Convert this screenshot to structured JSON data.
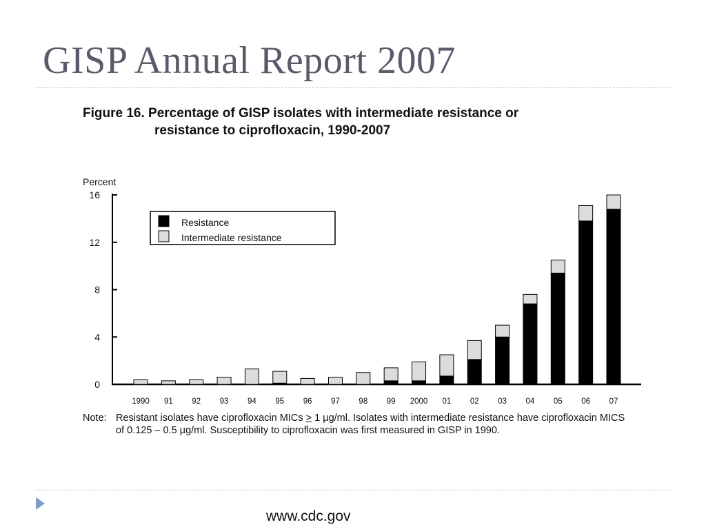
{
  "slide": {
    "title": "GISP Annual Report 2007",
    "footer_url": "www.cdc.gov",
    "bullet_icon": "triangle-bullet-icon"
  },
  "figure": {
    "caption_line1": "Figure 16. Percentage of GISP isolates with intermediate resistance or",
    "caption_line2": "resistance to ciprofloxacin, 1990-2007"
  },
  "note": {
    "label": "Note:",
    "text_part1": "Resistant isolates have ciprofloxacin MICs ",
    "ge_symbol": ">",
    "text_part2": " 1 µg/ml. Isolates with intermediate resistance have ciprofloxacin MICS of 0.125 – 0.5 µg/ml. Susceptibility to ciprofloxacin was first measured in GISP in 1990."
  },
  "chart_data": {
    "type": "bar",
    "stacked": true,
    "ylabel": "Percent",
    "xlabel": "",
    "ylim": [
      0,
      16
    ],
    "yticks": [
      0,
      4,
      8,
      12,
      16
    ],
    "categories": [
      "1990",
      "91",
      "92",
      "93",
      "94",
      "95",
      "96",
      "97",
      "98",
      "99",
      "2000",
      "01",
      "02",
      "03",
      "04",
      "05",
      "06",
      "07"
    ],
    "series": [
      {
        "name": "Resistance",
        "color": "#000000",
        "values": [
          0,
          0,
          0,
          0,
          0,
          0.1,
          0,
          0,
          0,
          0.3,
          0.3,
          0.7,
          2.1,
          4.0,
          6.8,
          9.4,
          13.8,
          14.8
        ]
      },
      {
        "name": "Intermediate resistance",
        "color": "#dcdcdc",
        "values": [
          0.4,
          0.3,
          0.4,
          0.6,
          1.3,
          1.0,
          0.5,
          0.6,
          1.0,
          1.1,
          1.6,
          1.8,
          1.6,
          1.0,
          0.8,
          1.1,
          1.3,
          1.2
        ]
      }
    ],
    "legend_position": "top-left",
    "grid": false
  }
}
